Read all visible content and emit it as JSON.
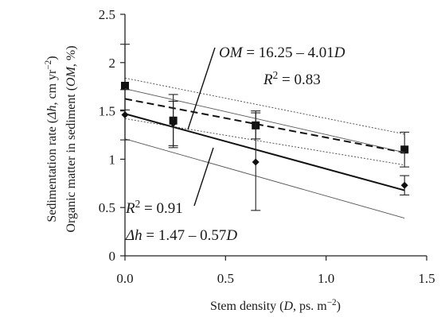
{
  "chart_data": {
    "type": "scatter",
    "xlabel": "Stem density (D, ps. m⁻²)",
    "ylabel_lines": [
      "Sedimentation rate (Δh, cm yr⁻¹)",
      "Organic matter in sediment (OM, %)"
    ],
    "xlim": [
      0,
      1.5
    ],
    "ylim": [
      0,
      2.5
    ],
    "x_ticks": [
      "0.0",
      "0.5",
      "1.0",
      "1.5"
    ],
    "y_ticks": [
      "0",
      "0.5",
      "1",
      "1.5",
      "2",
      "2.5"
    ],
    "grid": false,
    "series": [
      {
        "marker": "square",
        "line_style": "dashed",
        "x": [
          0.0,
          0.24,
          0.65,
          1.39
        ],
        "y": [
          1.76,
          1.4,
          1.35,
          1.1
        ],
        "err_low": [
          1.51,
          1.12,
          1.21,
          0.92
        ],
        "err_high": [
          2.19,
          1.67,
          1.5,
          1.28
        ],
        "fit": {
          "intercept": 1.625,
          "slope": -0.4,
          "ci_upper": [
            [
              0,
              1.84
            ],
            [
              1.39,
              1.26
            ]
          ],
          "ci_lower": [
            [
              0,
              1.42
            ],
            [
              1.39,
              0.94
            ]
          ]
        }
      },
      {
        "marker": "diamond",
        "line_style": "solid",
        "x": [
          0.0,
          0.24,
          0.65,
          1.39
        ],
        "y": [
          1.46,
          1.37,
          0.97,
          0.73
        ],
        "err_low": [
          1.2,
          1.14,
          0.47,
          0.63
        ],
        "err_high": [
          1.72,
          1.6,
          1.48,
          0.83
        ],
        "fit": {
          "intercept": 1.47,
          "slope": -0.57,
          "ci_upper": [
            [
              0,
              1.73
            ],
            [
              1.39,
              1.07
            ]
          ],
          "ci_lower": [
            [
              0,
              1.21
            ],
            [
              1.39,
              0.39
            ]
          ]
        }
      }
    ],
    "annotations": [
      {
        "italic": "OM",
        "text": " = 16.25 – 4.01",
        "italic2": "D"
      },
      {
        "italic": "R",
        "sup": "2",
        "text": " = 0.83"
      },
      {
        "italic": "R",
        "sup": "2",
        "text": " = 0.91"
      },
      {
        "italic": "Δh",
        "text": " = 1.47 – 0.57",
        "italic2": "D"
      }
    ]
  }
}
